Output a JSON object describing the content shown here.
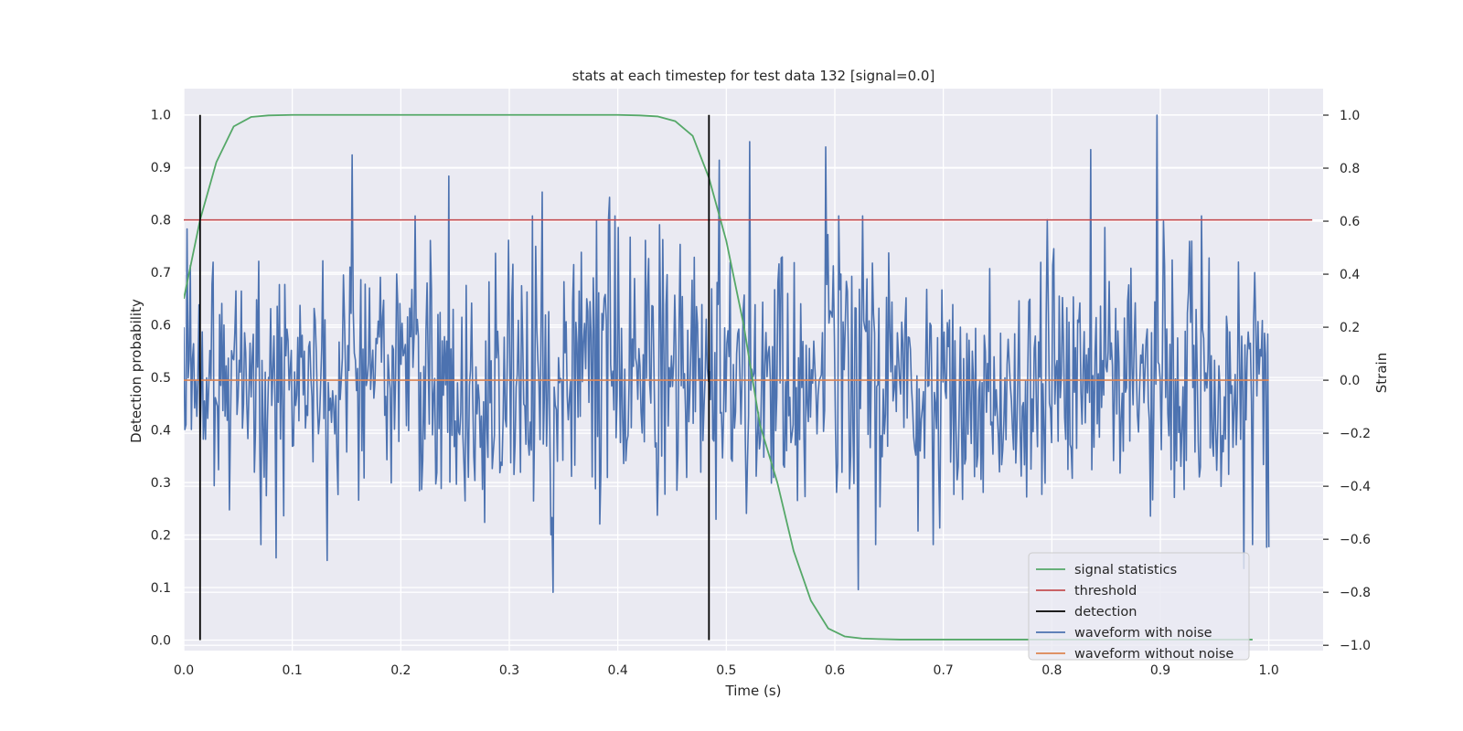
{
  "chart_data": {
    "type": "line",
    "title": "stats at each timestep for test data 132 [signal=0.0]",
    "xlabel": "Time (s)",
    "ylabel": "Detection probability",
    "y2label": "Strain",
    "xlim": [
      0.0,
      1.05
    ],
    "ylim": [
      -0.02,
      1.05
    ],
    "y2lim": [
      -1.02,
      1.1
    ],
    "xticks": [
      "0.0",
      "0.1",
      "0.2",
      "0.3",
      "0.4",
      "0.5",
      "0.6",
      "0.7",
      "0.8",
      "0.9",
      "1.0"
    ],
    "yticks": [
      "0.0",
      "0.1",
      "0.2",
      "0.3",
      "0.4",
      "0.5",
      "0.6",
      "0.7",
      "0.8",
      "0.9",
      "1.0"
    ],
    "y2ticks": [
      "−1.0",
      "−0.8",
      "−0.6",
      "−0.4",
      "−0.2",
      "0.0",
      "0.2",
      "0.4",
      "0.6",
      "0.8",
      "1.0"
    ],
    "grid": true,
    "legend_position": "lower-right",
    "series": [
      {
        "name": "signal statistics",
        "color": "#55a868",
        "axis": "left",
        "x": [
          0.0,
          0.015,
          0.03,
          0.046,
          0.062,
          0.078,
          0.1,
          0.2,
          0.3,
          0.4,
          0.42,
          0.437,
          0.453,
          0.469,
          0.484,
          0.5,
          0.516,
          0.531,
          0.547,
          0.562,
          0.578,
          0.594,
          0.609,
          0.625,
          0.64,
          0.66,
          0.7,
          0.8,
          0.9,
          0.985
        ],
        "values": [
          0.65,
          0.8,
          0.91,
          0.978,
          0.996,
          0.999,
          1.0,
          1.0,
          1.0,
          1.0,
          0.999,
          0.997,
          0.988,
          0.96,
          0.88,
          0.76,
          0.6,
          0.41,
          0.3,
          0.17,
          0.075,
          0.022,
          0.007,
          0.003,
          0.002,
          0.001,
          0.001,
          0.001,
          0.001,
          0.001
        ]
      },
      {
        "name": "threshold",
        "color": "#c44e52",
        "axis": "left",
        "x": [
          0.0,
          1.04
        ],
        "values": [
          0.8,
          0.8
        ]
      },
      {
        "name": "detection",
        "color": "#000000",
        "axis": "left",
        "x_positions": [
          0.015,
          0.484
        ],
        "range": [
          0.0,
          1.0
        ]
      },
      {
        "name": "waveform with noise",
        "color": "#4c72b0",
        "axis": "right",
        "sample_count": 1000,
        "x_range": [
          0.0,
          1.0
        ],
        "peaks": [
          {
            "x": 0.155,
            "value": 0.85
          },
          {
            "x": 0.244,
            "value": 0.77
          },
          {
            "x": 0.33,
            "value": 0.71
          },
          {
            "x": 0.392,
            "value": 0.69
          },
          {
            "x": 0.493,
            "value": 0.83
          },
          {
            "x": 0.522,
            "value": 0.9
          },
          {
            "x": 0.592,
            "value": 0.88
          },
          {
            "x": 0.836,
            "value": 0.87
          },
          {
            "x": 0.897,
            "value": 1.0
          },
          {
            "x": 0.3406,
            "value": -0.8
          },
          {
            "x": 0.085,
            "value": -0.67
          },
          {
            "x": 0.132,
            "value": -0.68
          },
          {
            "x": 0.622,
            "value": -0.79
          },
          {
            "x": 0.977,
            "value": -0.71
          },
          {
            "x": 0.998,
            "value": -0.63
          }
        ],
        "first_value": 0.2,
        "last_value": -0.63
      },
      {
        "name": "waveform without noise",
        "color": "#dd8452",
        "axis": "right",
        "x": [
          0.0,
          1.0
        ],
        "values": [
          0.0,
          0.0
        ]
      }
    ]
  }
}
